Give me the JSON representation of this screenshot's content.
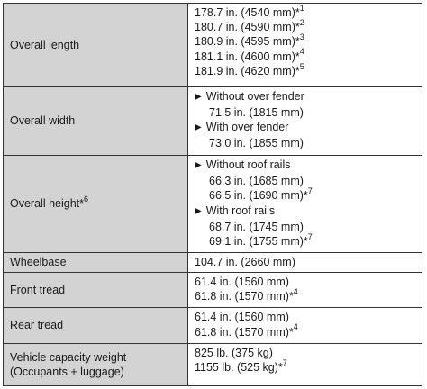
{
  "rows": [
    {
      "label": [
        "Overall length"
      ],
      "label_note": "",
      "values": [
        {
          "text": "178.7 in. (4540 mm)*",
          "note": "1",
          "type": "plain"
        },
        {
          "text": "180.7 in. (4590 mm)*",
          "note": "2",
          "type": "plain"
        },
        {
          "text": "180.9 in. (4595 mm)*",
          "note": "3",
          "type": "plain"
        },
        {
          "text": "181.1 in. (4600 mm)*",
          "note": "4",
          "type": "plain"
        },
        {
          "text": "181.9 in. (4620 mm)*",
          "note": "5",
          "type": "plain"
        }
      ]
    },
    {
      "label": [
        "Overall width"
      ],
      "label_note": "",
      "values": [
        {
          "text": "Without over fender",
          "note": "",
          "type": "bullet"
        },
        {
          "text": "71.5 in. (1815 mm)",
          "note": "",
          "type": "indent"
        },
        {
          "text": "With over fender",
          "note": "",
          "type": "bullet"
        },
        {
          "text": "73.0 in. (1855 mm)",
          "note": "",
          "type": "indent"
        }
      ]
    },
    {
      "label": [
        "Overall height*"
      ],
      "label_note": "6",
      "values": [
        {
          "text": "Without roof rails",
          "note": "",
          "type": "bullet"
        },
        {
          "text": "66.3 in. (1685 mm)",
          "note": "",
          "type": "indent"
        },
        {
          "text": "66.5 in. (1690 mm)*",
          "note": "7",
          "type": "indent"
        },
        {
          "text": "With roof rails",
          "note": "",
          "type": "bullet"
        },
        {
          "text": "68.7 in. (1745 mm)",
          "note": "",
          "type": "indent"
        },
        {
          "text": "69.1 in. (1755 mm)*",
          "note": "7",
          "type": "indent"
        }
      ]
    },
    {
      "label": [
        "Wheelbase"
      ],
      "label_note": "",
      "values": [
        {
          "text": "104.7 in. (2660 mm)",
          "note": "",
          "type": "plain"
        }
      ]
    },
    {
      "label": [
        "Front tread"
      ],
      "label_note": "",
      "values": [
        {
          "text": "61.4 in. (1560 mm)",
          "note": "",
          "type": "plain"
        },
        {
          "text": "61.8 in. (1570 mm)*",
          "note": "4",
          "type": "plain"
        }
      ]
    },
    {
      "label": [
        "Rear tread"
      ],
      "label_note": "",
      "values": [
        {
          "text": "61.4 in. (1560 mm)",
          "note": "",
          "type": "plain"
        },
        {
          "text": "61.8 in. (1570 mm)*",
          "note": "4",
          "type": "plain"
        }
      ]
    },
    {
      "label": [
        "Vehicle capacity weight",
        "(Occupants + luggage)"
      ],
      "label_note": "",
      "values": [
        {
          "text": "825 lb. (375 kg)",
          "note": "",
          "type": "plain"
        },
        {
          "text": "1155 lb. (525 kg)*",
          "note": "7",
          "type": "plain"
        }
      ]
    }
  ]
}
